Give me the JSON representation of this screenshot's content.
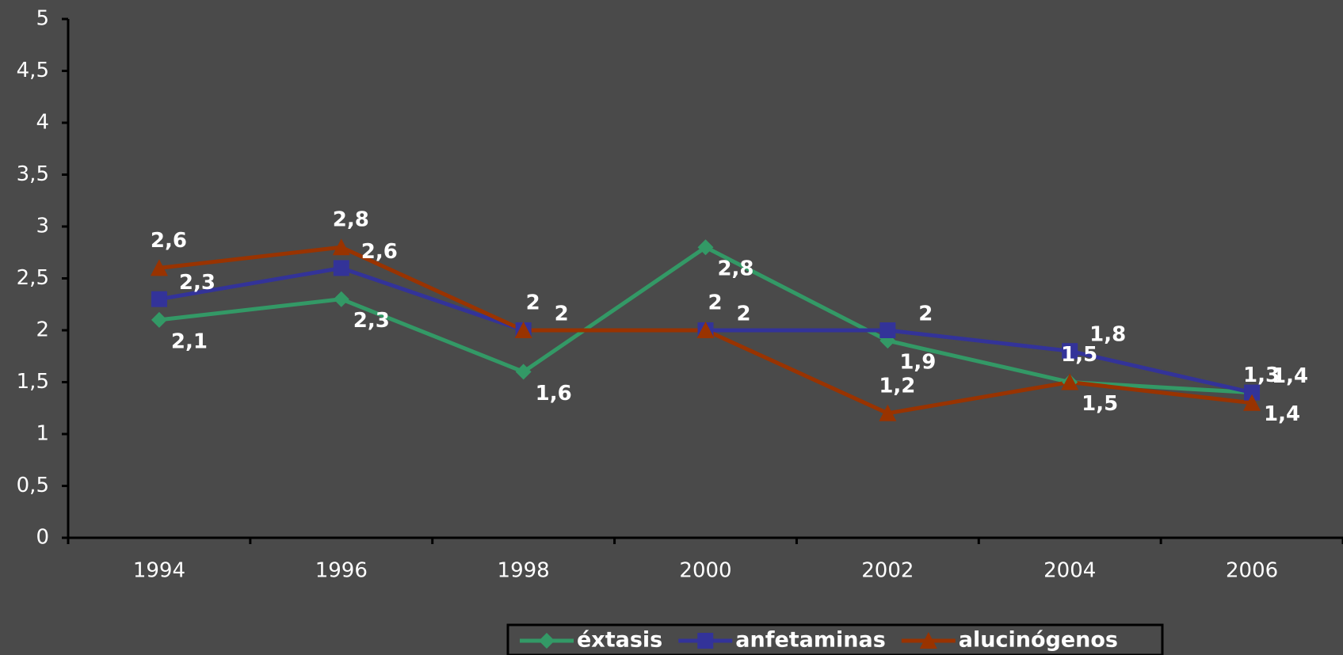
{
  "chart_data": {
    "type": "line",
    "categories": [
      "1994",
      "1996",
      "1998",
      "2000",
      "2002",
      "2004",
      "2006"
    ],
    "series": [
      {
        "name": "éxtasis",
        "color": "#339966",
        "marker": "diamond",
        "values": [
          2.1,
          2.3,
          1.6,
          2.8,
          1.9,
          1.5,
          1.4
        ],
        "value_labels": [
          "2,1",
          "2,3",
          "1,6",
          "2,8",
          "1,9",
          "1,5",
          "1,4"
        ]
      },
      {
        "name": "anfetaminas",
        "color": "#333399",
        "marker": "square",
        "values": [
          2.3,
          2.6,
          2,
          2,
          2,
          1.8,
          1.4
        ],
        "value_labels": [
          "2,3",
          "2,6",
          "2",
          "2",
          "2",
          "1,8",
          "1,4"
        ]
      },
      {
        "name": "alucinógenos",
        "color": "#993300",
        "marker": "triangle",
        "values": [
          2.6,
          2.8,
          2,
          2,
          1.2,
          1.5,
          1.3
        ],
        "value_labels": [
          "2,6",
          "2,8",
          "2",
          "2",
          "1,2",
          "1,5",
          "1,3"
        ]
      }
    ],
    "ylim": [
      0,
      5
    ],
    "yticks": [
      0,
      {
        "value": 0.5,
        "label": "0,5"
      },
      1,
      {
        "value": 1.5,
        "label": "1,5"
      },
      2,
      {
        "value": 2.5,
        "label": "2,5"
      },
      3,
      {
        "value": 3.5,
        "label": "3,5"
      },
      4,
      {
        "value": 4.5,
        "label": "4,5"
      },
      5
    ],
    "grid": false,
    "legend": "bottom"
  }
}
